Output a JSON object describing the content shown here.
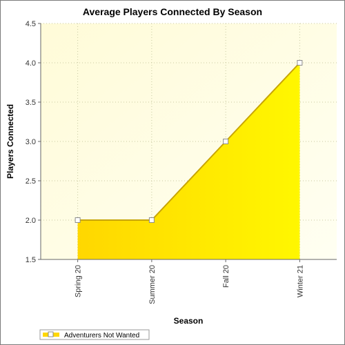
{
  "chart_data": {
    "type": "area",
    "title": "Average Players Connected By Season",
    "xlabel": "Season",
    "ylabel": "Players Connected",
    "categories": [
      "Spring 20",
      "Summer 20",
      "Fall 20",
      "Winter 21"
    ],
    "series": [
      {
        "name": "Adventurers Not Wanted",
        "values": [
          2.0,
          2.0,
          3.0,
          4.0
        ]
      }
    ],
    "ylim": [
      1.5,
      4.5
    ],
    "yticks": [
      "1.5",
      "2.0",
      "2.5",
      "3.0",
      "3.5",
      "4.0",
      "4.5"
    ],
    "grid": true,
    "legend": "bottom-left",
    "colors": {
      "area_fill_start": "#ffd700",
      "area_fill_end": "#fff700",
      "area_line": "#c8a400",
      "plot_bg_start": "#fffbd8",
      "plot_bg_end": "#fffff2",
      "gridline": "#c8c8a0"
    }
  }
}
